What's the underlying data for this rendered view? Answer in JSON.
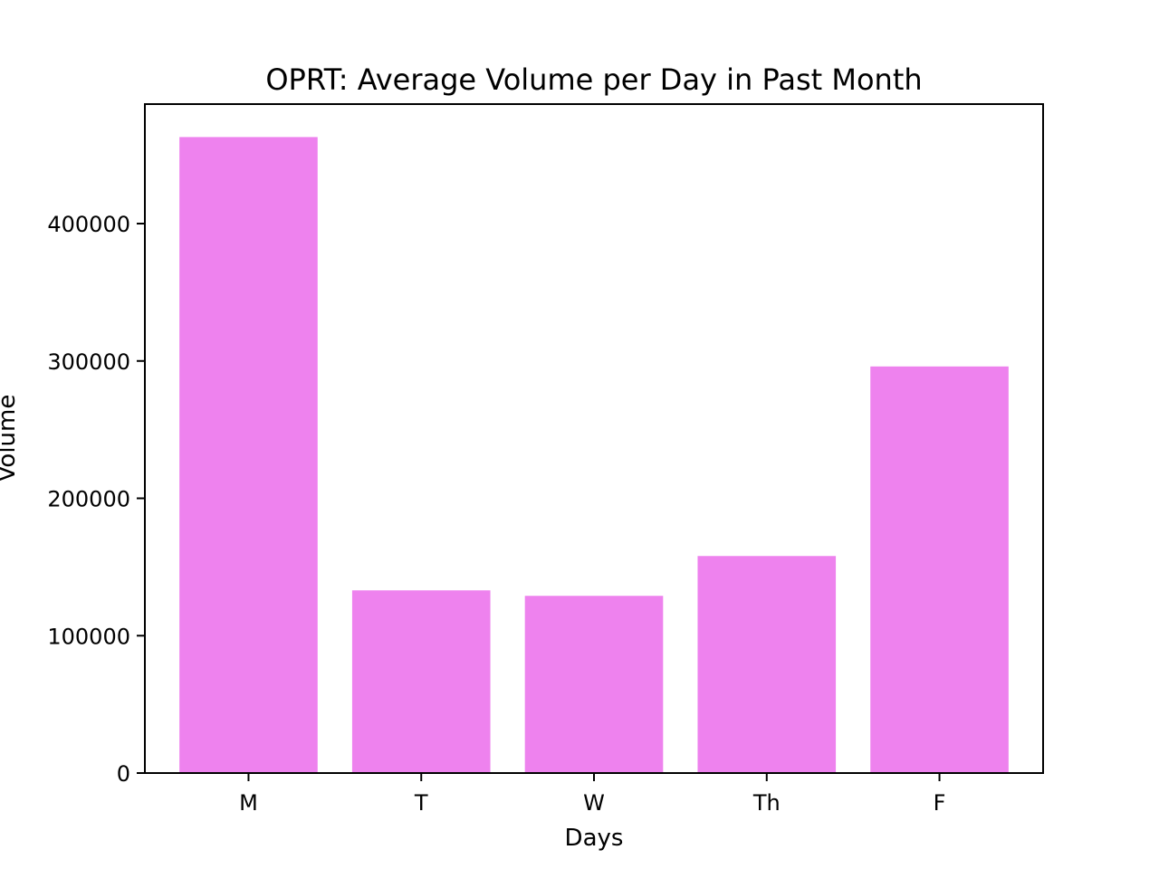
{
  "chart_data": {
    "type": "bar",
    "title": "OPRT: Average Volume per Day in Past Month",
    "xlabel": "Days",
    "ylabel": "Volume",
    "categories": [
      "M",
      "T",
      "W",
      "Th",
      "F"
    ],
    "values": [
      463000,
      133000,
      129000,
      158000,
      296000
    ],
    "ylim": [
      0,
      487000
    ],
    "yticks": [
      0,
      100000,
      200000,
      300000,
      400000
    ],
    "ytick_labels": [
      "0",
      "100000",
      "200000",
      "300000",
      "400000"
    ],
    "bar_color": "#ee82ee",
    "grid": false,
    "legend": "none"
  }
}
